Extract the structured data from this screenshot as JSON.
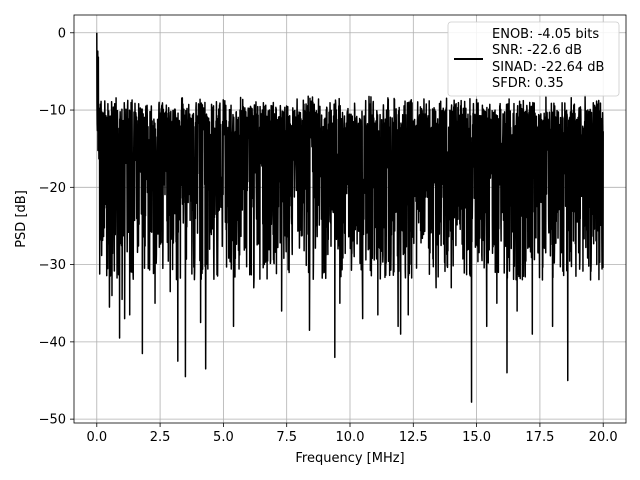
{
  "chart_data": {
    "type": "line",
    "title": "",
    "xlabel": "Frequency [MHz]",
    "ylabel": "PSD [dB]",
    "xlim": [
      -0.9,
      20.9
    ],
    "ylim": [
      -50.5,
      2.3
    ],
    "xticks": [
      0.0,
      2.5,
      5.0,
      7.5,
      10.0,
      12.5,
      15.0,
      17.5,
      20.0
    ],
    "xtick_labels": [
      "0.0",
      "2.5",
      "5.0",
      "7.5",
      "10.0",
      "12.5",
      "15.0",
      "17.5",
      "20.0"
    ],
    "yticks": [
      0,
      -10,
      -20,
      -30,
      -40,
      -50
    ],
    "ytick_labels": [
      "0",
      "−10",
      "−20",
      "−30",
      "−40",
      "−50"
    ],
    "grid": true,
    "legend_position": "top-right",
    "series": [
      {
        "color": "#000000",
        "x_range": [
          0.0,
          20.0
        ],
        "typical_range_db": [
          -26,
          -10
        ],
        "occasional_dips_db": [
          -35,
          -48
        ],
        "peak_at_dc_db": 0,
        "dips": [
          {
            "x": 0.5,
            "y": -35.5
          },
          {
            "x": 0.6,
            "y": -34
          },
          {
            "x": 0.9,
            "y": -39.5
          },
          {
            "x": 1.0,
            "y": -34.5
          },
          {
            "x": 1.1,
            "y": -37
          },
          {
            "x": 1.3,
            "y": -36.5
          },
          {
            "x": 1.8,
            "y": -41.5
          },
          {
            "x": 2.3,
            "y": -35
          },
          {
            "x": 2.9,
            "y": -33.5
          },
          {
            "x": 3.2,
            "y": -42.5
          },
          {
            "x": 3.5,
            "y": -44.5
          },
          {
            "x": 4.1,
            "y": -37.5
          },
          {
            "x": 4.3,
            "y": -43.5
          },
          {
            "x": 5.4,
            "y": -38
          },
          {
            "x": 6.2,
            "y": -33
          },
          {
            "x": 7.3,
            "y": -36
          },
          {
            "x": 8.4,
            "y": -38.5
          },
          {
            "x": 9.4,
            "y": -42
          },
          {
            "x": 9.6,
            "y": -35
          },
          {
            "x": 10.5,
            "y": -37
          },
          {
            "x": 11.1,
            "y": -36.5
          },
          {
            "x": 11.9,
            "y": -38
          },
          {
            "x": 12.0,
            "y": -39
          },
          {
            "x": 12.3,
            "y": -36.5
          },
          {
            "x": 13.4,
            "y": -33
          },
          {
            "x": 14.0,
            "y": -33
          },
          {
            "x": 14.8,
            "y": -47.8
          },
          {
            "x": 15.4,
            "y": -38
          },
          {
            "x": 15.8,
            "y": -35
          },
          {
            "x": 16.2,
            "y": -44
          },
          {
            "x": 16.6,
            "y": -36
          },
          {
            "x": 17.2,
            "y": -39
          },
          {
            "x": 17.6,
            "y": -32
          },
          {
            "x": 18.0,
            "y": -38
          },
          {
            "x": 18.6,
            "y": -45
          },
          {
            "x": 19.5,
            "y": -32
          }
        ]
      }
    ],
    "legend": {
      "lines": [
        "ENOB: -4.05 bits",
        "SNR: -22.6 dB",
        "SINAD: -22.64 dB",
        "SFDR: 0.35"
      ]
    }
  }
}
